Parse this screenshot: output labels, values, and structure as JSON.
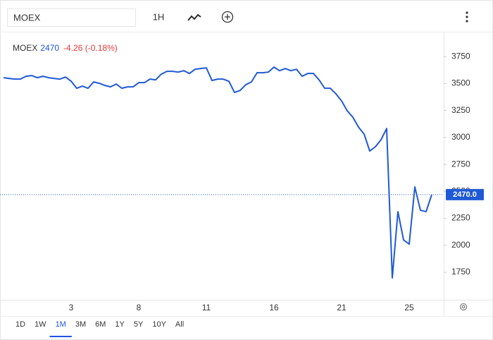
{
  "toolbar": {
    "symbol": "MOEX",
    "interval": "1H"
  },
  "legend": {
    "price": "2470",
    "change": "-4.26 (-0.18%)"
  },
  "chart_data": {
    "type": "line",
    "categories": [
      null,
      null,
      null,
      null,
      null,
      null,
      null,
      null,
      null,
      null,
      null,
      null,
      "3",
      null,
      null,
      null,
      null,
      null,
      null,
      null,
      null,
      null,
      null,
      null,
      "8",
      null,
      null,
      null,
      null,
      null,
      null,
      null,
      null,
      null,
      null,
      null,
      "11",
      null,
      null,
      null,
      null,
      null,
      null,
      null,
      null,
      null,
      null,
      null,
      "16",
      null,
      null,
      null,
      null,
      null,
      null,
      null,
      null,
      null,
      null,
      null,
      "21",
      null,
      null,
      null,
      null,
      null,
      null,
      null,
      null,
      null,
      null,
      null,
      "25",
      null,
      null,
      null,
      null
    ],
    "series": [
      {
        "name": "MOEX",
        "color": "#1f5ad6",
        "values": [
          3554,
          3547,
          3541,
          3541,
          3567,
          3574,
          3554,
          3567,
          3554,
          3547,
          3541,
          3560,
          3521,
          3456,
          3476,
          3456,
          3515,
          3502,
          3482,
          3469,
          3495,
          3456,
          3469,
          3469,
          3508,
          3508,
          3541,
          3534,
          3587,
          3613,
          3613,
          3606,
          3619,
          3593,
          3632,
          3639,
          3645,
          3528,
          3541,
          3541,
          3521,
          3417,
          3436,
          3489,
          3515,
          3600,
          3600,
          3606,
          3652,
          3619,
          3639,
          3619,
          3632,
          3567,
          3593,
          3593,
          3534,
          3456,
          3456,
          3404,
          3339,
          3247,
          3188,
          3096,
          3031,
          2874,
          2914,
          2979,
          3083,
          1698,
          2312,
          2050,
          2011,
          2541,
          2325,
          2312,
          2470
        ]
      }
    ],
    "ylim": [
      1495,
      3980
    ],
    "yticks": [
      1750,
      2000,
      2250,
      2500,
      2750,
      3000,
      3250,
      3500,
      3750
    ],
    "price_line": {
      "value": 2470,
      "label": "2470.0"
    },
    "grid": false
  },
  "ranges": {
    "items": [
      "1D",
      "1W",
      "1M",
      "3M",
      "6M",
      "1Y",
      "5Y",
      "10Y",
      "All"
    ],
    "active": "1M"
  }
}
